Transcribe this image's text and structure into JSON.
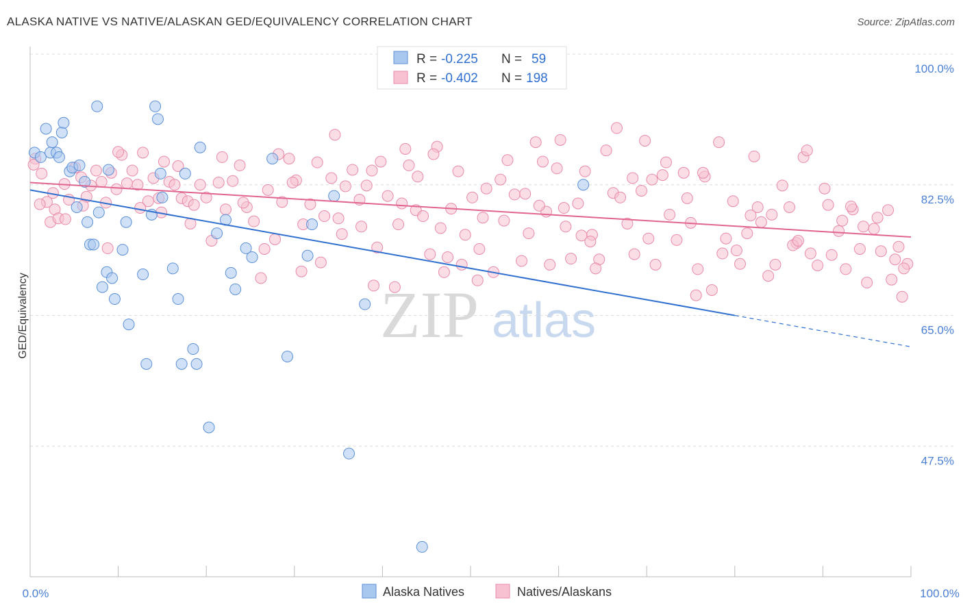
{
  "header": {
    "title": "ALASKA NATIVE VS NATIVE/ALASKAN GED/EQUIVALENCY CORRELATION CHART",
    "source": "Source: ZipAtlas.com"
  },
  "watermark": {
    "zip": "ZIP",
    "atlas": "atlas"
  },
  "legend_box": {
    "rows": [
      {
        "r_label": "R =",
        "r_value": "-0.225",
        "n_label": "N =",
        "n_value": "59"
      },
      {
        "r_label": "R =",
        "r_value": "-0.402",
        "n_label": "N =",
        "n_value": "198"
      }
    ]
  },
  "bottom_legend": [
    "Alaska Natives",
    "Natives/Alaskans"
  ],
  "colors": {
    "blue_fill": "#a9c8f0",
    "blue_stroke": "#5b8fd6",
    "blue_line": "#2f6fcf",
    "pink_fill": "#f7c1d1",
    "pink_stroke": "#e88aa8",
    "pink_line": "#e0648f",
    "tick_label": "#4a7fd4"
  },
  "chart_data": {
    "type": "scatter",
    "title": "ALASKA NATIVE VS NATIVE/ALASKAN GED/EQUIVALENCY CORRELATION CHART",
    "xlabel": "",
    "ylabel": "GED/Equivalency",
    "xlim": [
      0,
      100
    ],
    "ylim": [
      30,
      100
    ],
    "x_tick_labels": [
      "0.0%",
      "100.0%"
    ],
    "y_tick_labels": [
      "100.0%",
      "82.5%",
      "65.0%",
      "47.5%"
    ],
    "y_ticks": [
      100,
      82.5,
      65,
      47.5
    ],
    "grid": true,
    "legend": "top-center",
    "series": [
      {
        "name": "Alaska Natives",
        "R": -0.225,
        "N": 59,
        "trend": {
          "x0": 0,
          "y0": 81.8,
          "x1": 100,
          "y1": 60.8,
          "solid_until": 80
        },
        "points": [
          [
            0.5,
            86.8
          ],
          [
            1.2,
            86.2
          ],
          [
            1.8,
            90
          ],
          [
            2.3,
            86.8
          ],
          [
            2.5,
            88.2
          ],
          [
            3,
            86.8
          ],
          [
            3.3,
            86.2
          ],
          [
            3.6,
            89.5
          ],
          [
            3.8,
            90.8
          ],
          [
            4.5,
            84.3
          ],
          [
            4.8,
            84.8
          ],
          [
            5.3,
            79.5
          ],
          [
            5.6,
            85.1
          ],
          [
            6.2,
            82.9
          ],
          [
            6.5,
            77.5
          ],
          [
            6.8,
            74.5
          ],
          [
            7.2,
            74.5
          ],
          [
            7.6,
            93
          ],
          [
            7.8,
            78.8
          ],
          [
            8.2,
            68.8
          ],
          [
            8.7,
            70.8
          ],
          [
            8.9,
            84.5
          ],
          [
            9.3,
            70
          ],
          [
            9.6,
            67.2
          ],
          [
            10.5,
            73.8
          ],
          [
            10.9,
            77.5
          ],
          [
            11.2,
            63.8
          ],
          [
            12.8,
            70.5
          ],
          [
            13.2,
            58.5
          ],
          [
            13.8,
            78.5
          ],
          [
            14.2,
            93
          ],
          [
            14.5,
            91.3
          ],
          [
            14.8,
            84
          ],
          [
            15,
            80.8
          ],
          [
            16.2,
            71.3
          ],
          [
            16.8,
            67.2
          ],
          [
            17.2,
            58.5
          ],
          [
            17.6,
            84
          ],
          [
            18.5,
            60.5
          ],
          [
            18.9,
            58.5
          ],
          [
            19.3,
            87.5
          ],
          [
            20.3,
            50
          ],
          [
            21.2,
            76
          ],
          [
            22.2,
            77.8
          ],
          [
            22.8,
            70.7
          ],
          [
            23.3,
            68.5
          ],
          [
            24.5,
            74
          ],
          [
            25.2,
            72.8
          ],
          [
            27.5,
            86
          ],
          [
            29.2,
            59.5
          ],
          [
            31.5,
            73
          ],
          [
            32,
            77.2
          ],
          [
            34.5,
            81
          ],
          [
            36.2,
            46.5
          ],
          [
            38,
            66.5
          ],
          [
            41,
            100
          ],
          [
            44.5,
            34
          ],
          [
            44.8,
            100
          ],
          [
            62.8,
            82.5
          ]
        ]
      },
      {
        "name": "Natives/Alaskans",
        "R": -0.402,
        "N": 198,
        "trend": {
          "x0": 0,
          "y0": 82.8,
          "x1": 100,
          "y1": 75.5
        },
        "points": [
          [
            1.3,
            84
          ],
          [
            1.9,
            80.2
          ],
          [
            2.3,
            77.5
          ],
          [
            2.8,
            79.2
          ],
          [
            3.2,
            78
          ],
          [
            3.9,
            82.6
          ],
          [
            4.4,
            80.5
          ],
          [
            5.1,
            84.8
          ],
          [
            5.8,
            83.5
          ],
          [
            6.4,
            80.9
          ],
          [
            6.9,
            82.4
          ],
          [
            7.5,
            84.4
          ],
          [
            8.1,
            82.9
          ],
          [
            8.6,
            80.1
          ],
          [
            9.2,
            84.1
          ],
          [
            9.8,
            81.9
          ],
          [
            10.4,
            86.5
          ],
          [
            11,
            82.7
          ],
          [
            11.6,
            84.4
          ],
          [
            12.2,
            82.5
          ],
          [
            12.8,
            86.8
          ],
          [
            13.4,
            80.3
          ],
          [
            14,
            83.4
          ],
          [
            14.6,
            80.7
          ],
          [
            15.2,
            85.6
          ],
          [
            15.8,
            82.9
          ],
          [
            16.4,
            82.5
          ],
          [
            17.2,
            80.7
          ],
          [
            17.9,
            80.3
          ],
          [
            18.6,
            79.8
          ],
          [
            19.3,
            82.5
          ],
          [
            20,
            80.8
          ],
          [
            20.6,
            75
          ],
          [
            21.4,
            82.8
          ],
          [
            22.2,
            79.2
          ],
          [
            23,
            83
          ],
          [
            23.8,
            85.1
          ],
          [
            24.6,
            79.5
          ],
          [
            25.4,
            77.6
          ],
          [
            26.2,
            70
          ],
          [
            27,
            81.8
          ],
          [
            27.8,
            75.2
          ],
          [
            28.6,
            80.2
          ],
          [
            29.4,
            86
          ],
          [
            30.2,
            83.1
          ],
          [
            31,
            77.2
          ],
          [
            31.8,
            79.9
          ],
          [
            32.6,
            85.5
          ],
          [
            33.4,
            78.3
          ],
          [
            34.2,
            83.4
          ],
          [
            35,
            78
          ],
          [
            35.8,
            82.3
          ],
          [
            36.6,
            84.5
          ],
          [
            37.4,
            80.5
          ],
          [
            38.2,
            82.4
          ],
          [
            39,
            69
          ],
          [
            39.8,
            85.6
          ],
          [
            40.6,
            81
          ],
          [
            41.4,
            68.8
          ],
          [
            42.2,
            80
          ],
          [
            43,
            85.1
          ],
          [
            43.8,
            79.1
          ],
          [
            44.6,
            78.3
          ],
          [
            45.4,
            73.2
          ],
          [
            46.2,
            87.6
          ],
          [
            47,
            70.8
          ],
          [
            47.8,
            79.3
          ],
          [
            48.6,
            84.3
          ],
          [
            49.4,
            75.8
          ],
          [
            50.2,
            80.8
          ],
          [
            51,
            73.9
          ],
          [
            51.8,
            82
          ],
          [
            52.6,
            70.8
          ],
          [
            53.4,
            83.2
          ],
          [
            54.2,
            85.8
          ],
          [
            55,
            81.2
          ],
          [
            55.8,
            72.3
          ],
          [
            56.6,
            76
          ],
          [
            57.4,
            88.2
          ],
          [
            58.2,
            85.6
          ],
          [
            59,
            71.8
          ],
          [
            59.8,
            84.7
          ],
          [
            60.6,
            79.4
          ],
          [
            61.4,
            72.6
          ],
          [
            62.2,
            80
          ],
          [
            63,
            84.3
          ],
          [
            63.8,
            75.8
          ],
          [
            64.6,
            72.5
          ],
          [
            65.4,
            87.1
          ],
          [
            66.2,
            81.4
          ],
          [
            67,
            80.8
          ],
          [
            67.8,
            77.3
          ],
          [
            68.6,
            73.2
          ],
          [
            69.4,
            81.7
          ],
          [
            70.2,
            75.3
          ],
          [
            71,
            71.8
          ],
          [
            71.8,
            83.8
          ],
          [
            72.6,
            78.5
          ],
          [
            73.4,
            75.1
          ],
          [
            74.2,
            84.1
          ],
          [
            75,
            77.4
          ],
          [
            75.8,
            71.2
          ],
          [
            76.6,
            83.6
          ],
          [
            77.4,
            68.4
          ],
          [
            78.2,
            88.2
          ],
          [
            79,
            75.3
          ],
          [
            79.8,
            80.3
          ],
          [
            80.6,
            71.9
          ],
          [
            81.4,
            76
          ],
          [
            82.2,
            86.3
          ],
          [
            83,
            77.5
          ],
          [
            83.8,
            70.3
          ],
          [
            84.6,
            71.8
          ],
          [
            85.4,
            82.4
          ],
          [
            86.2,
            79.5
          ],
          [
            87,
            74.7
          ],
          [
            87.8,
            86.2
          ],
          [
            88.6,
            73.3
          ],
          [
            89.4,
            71.7
          ],
          [
            90.2,
            82
          ],
          [
            91,
            73.1
          ],
          [
            91.8,
            76.3
          ],
          [
            92.6,
            71.2
          ],
          [
            93.4,
            79.2
          ],
          [
            94.2,
            73.9
          ],
          [
            95,
            69.4
          ],
          [
            95.8,
            76.6
          ],
          [
            96.6,
            73.6
          ],
          [
            97.4,
            79.1
          ],
          [
            98.2,
            72.5
          ],
          [
            99,
            67.5
          ],
          [
            99.6,
            71.9
          ],
          [
            0.6,
            86
          ],
          [
            0.4,
            85.2
          ],
          [
            1.1,
            79.9
          ],
          [
            2.6,
            81.4
          ],
          [
            4,
            77.9
          ],
          [
            6,
            79.7
          ],
          [
            8.8,
            74
          ],
          [
            10,
            86.9
          ],
          [
            12.5,
            79.4
          ],
          [
            14.9,
            78.8
          ],
          [
            16.8,
            85
          ],
          [
            18.2,
            77.3
          ],
          [
            21.8,
            86.2
          ],
          [
            24.2,
            80.1
          ],
          [
            26.6,
            73.9
          ],
          [
            28.2,
            86.6
          ],
          [
            30.8,
            70.9
          ],
          [
            33,
            72.1
          ],
          [
            35.4,
            75.9
          ],
          [
            37.6,
            76.9
          ],
          [
            39.4,
            74.1
          ],
          [
            41.8,
            77.2
          ],
          [
            44,
            83.6
          ],
          [
            46.6,
            76.7
          ],
          [
            49,
            71.8
          ],
          [
            51.4,
            78.1
          ],
          [
            53.8,
            77.7
          ],
          [
            56.2,
            81.3
          ],
          [
            58.6,
            78.9
          ],
          [
            60.8,
            76.9
          ],
          [
            62.6,
            75.7
          ],
          [
            64.2,
            71.3
          ],
          [
            66.6,
            90.1
          ],
          [
            68.4,
            83.4
          ],
          [
            70.6,
            83.2
          ],
          [
            72.2,
            85.5
          ],
          [
            74.6,
            80.7
          ],
          [
            76.4,
            84.1
          ],
          [
            78.6,
            73.3
          ],
          [
            80.2,
            73.7
          ],
          [
            82.6,
            79.5
          ],
          [
            84.2,
            78.5
          ],
          [
            86.6,
            74.4
          ],
          [
            88.2,
            87.1
          ],
          [
            90.6,
            79.8
          ],
          [
            92.2,
            77.7
          ],
          [
            94.6,
            76.9
          ],
          [
            96.2,
            78.1
          ],
          [
            97.8,
            69.8
          ],
          [
            99.2,
            71.3
          ],
          [
            45.8,
            86.6
          ],
          [
            47.4,
            72.8
          ],
          [
            50.8,
            69.7
          ],
          [
            57.8,
            79.7
          ],
          [
            63.6,
            74.9
          ],
          [
            69.8,
            88.4
          ],
          [
            75.6,
            67.7
          ],
          [
            81.8,
            78.4
          ],
          [
            87.2,
            75
          ],
          [
            93.2,
            79.6
          ],
          [
            98.6,
            74.2
          ],
          [
            34.6,
            89.2
          ],
          [
            60.2,
            88.5
          ],
          [
            42.6,
            87.3
          ],
          [
            38.8,
            84.4
          ],
          [
            29.8,
            82.8
          ]
        ]
      }
    ]
  }
}
